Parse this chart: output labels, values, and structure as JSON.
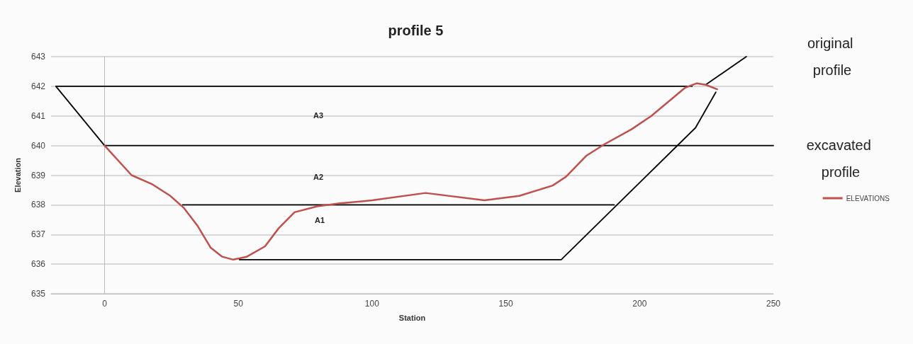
{
  "chart_data": {
    "type": "line",
    "title": "profile 5",
    "xlabel": "Station",
    "ylabel": "Elevation",
    "xlim": [
      -20,
      250
    ],
    "xticks": [
      0,
      50,
      100,
      150,
      200,
      250
    ],
    "ylim": [
      635,
      643
    ],
    "yticks": [
      635,
      636,
      637,
      638,
      639,
      640,
      641,
      642,
      643
    ],
    "grid": "y",
    "legend": "right",
    "marker": "none",
    "line_style": "solid",
    "series": [
      {
        "name": "ELEVATIONS",
        "color": "#c0504d",
        "x": [
          0,
          10.1,
          17.7,
          24.6,
          29.6,
          34.7,
          39.7,
          44,
          48.1,
          53.2,
          60,
          65,
          71,
          79.5,
          88,
          100,
          120,
          142,
          155,
          167.5,
          172.5,
          180,
          187,
          197,
          204.4,
          217,
          221.4,
          224.7,
          229
        ],
        "values": [
          640,
          639,
          638.7,
          638.3,
          637.9,
          637.3,
          636.55,
          636.25,
          636.15,
          636.25,
          636.6,
          637.2,
          637.75,
          637.95,
          638.05,
          638.15,
          638.4,
          638.15,
          638.3,
          638.65,
          638.95,
          639.65,
          640.05,
          640.55,
          641,
          641.95,
          642.1,
          642.05,
          641.9
        ]
      },
      {
        "color": "#000000",
        "x": [
          219.6,
          -18.2,
          0,
          250
        ],
        "values": [
          642,
          642,
          640,
          640
        ]
      },
      {
        "color": "#000000",
        "x": [
          29.2,
          190.5
        ],
        "values": [
          638,
          638
        ]
      },
      {
        "color": "#000000",
        "x": [
          224.7,
          239.9
        ],
        "values": [
          642.05,
          643
        ]
      },
      {
        "color": "#000000",
        "x": [
          50.4,
          170.7,
          220.9,
          228.5
        ],
        "values": [
          636.15,
          636.15,
          640.6,
          641.8
        ]
      }
    ],
    "annotations": [
      "A3",
      "A2",
      "A1",
      "original profile",
      "excavated profile"
    ]
  }
}
